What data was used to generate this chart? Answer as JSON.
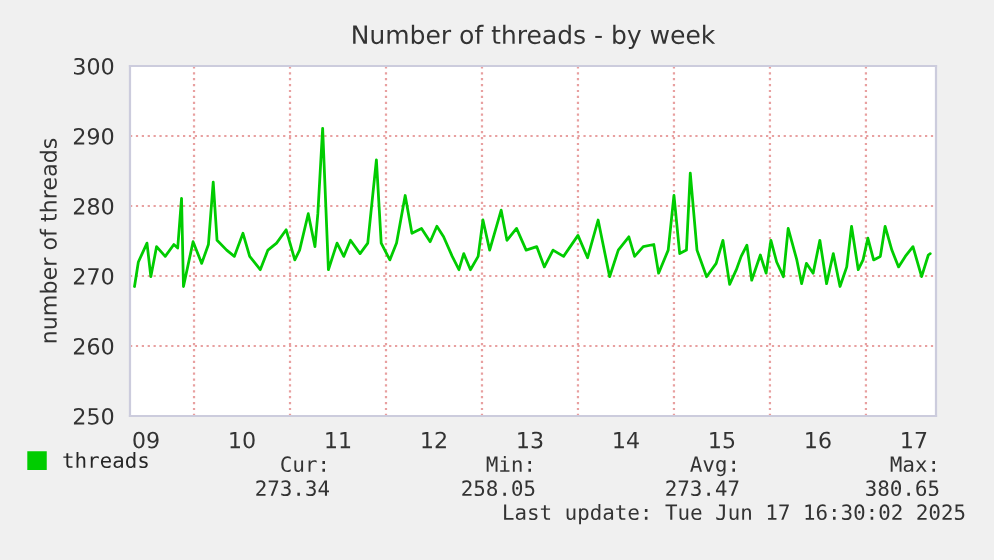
{
  "chart_data": {
    "type": "line",
    "title": "Number of threads - by week",
    "ylabel": "number of threads",
    "xlim": [
      9.333,
      17.73
    ],
    "ylim": [
      250,
      300
    ],
    "yticks": [
      250,
      260,
      270,
      280,
      290,
      300
    ],
    "xticks": [
      {
        "value": 9.5,
        "label": "09"
      },
      {
        "value": 10.5,
        "label": "10"
      },
      {
        "value": 11.5,
        "label": "11"
      },
      {
        "value": 12.5,
        "label": "12"
      },
      {
        "value": 13.5,
        "label": "13"
      },
      {
        "value": 14.5,
        "label": "14"
      },
      {
        "value": 15.5,
        "label": "15"
      },
      {
        "value": 16.5,
        "label": "16"
      },
      {
        "value": 17.5,
        "label": "17"
      }
    ],
    "grid": "y",
    "legend": "bottom",
    "ref_lines": [
      {
        "axis": "x",
        "value": 10,
        "color": "#e8a0a0",
        "line_style": "dotted"
      },
      {
        "axis": "x",
        "value": 11,
        "color": "#e8a0a0",
        "line_style": "dotted"
      },
      {
        "axis": "x",
        "value": 12,
        "color": "#e8a0a0",
        "line_style": "dotted"
      },
      {
        "axis": "x",
        "value": 13,
        "color": "#e8a0a0",
        "line_style": "dotted"
      },
      {
        "axis": "x",
        "value": 14,
        "color": "#e8a0a0",
        "line_style": "dotted"
      },
      {
        "axis": "x",
        "value": 15,
        "color": "#e8a0a0",
        "line_style": "dotted"
      },
      {
        "axis": "x",
        "value": 16,
        "color": "#e8a0a0",
        "line_style": "dotted"
      },
      {
        "axis": "x",
        "value": 17,
        "color": "#e8a0a0",
        "line_style": "dotted"
      }
    ],
    "series": [
      {
        "name": "threads",
        "color": "#00cc00",
        "x": [
          9.38,
          9.42,
          9.51,
          9.55,
          9.61,
          9.7,
          9.79,
          9.83,
          9.87,
          9.89,
          9.99,
          10.08,
          10.15,
          10.2,
          10.24,
          10.34,
          10.42,
          10.51,
          10.58,
          10.69,
          10.77,
          10.86,
          10.96,
          11.05,
          11.1,
          11.19,
          11.26,
          11.29,
          11.34,
          11.4,
          11.49,
          11.56,
          11.63,
          11.73,
          11.81,
          11.9,
          11.95,
          12.04,
          12.11,
          12.2,
          12.27,
          12.37,
          12.46,
          12.53,
          12.6,
          12.69,
          12.76,
          12.81,
          12.88,
          12.96,
          13.01,
          13.08,
          13.2,
          13.26,
          13.36,
          13.46,
          13.57,
          13.65,
          13.74,
          13.85,
          14.0,
          14.1,
          14.21,
          14.33,
          14.42,
          14.53,
          14.59,
          14.68,
          14.79,
          14.84,
          14.94,
          15.0,
          15.06,
          15.13,
          15.17,
          15.24,
          15.34,
          15.44,
          15.51,
          15.58,
          15.65,
          15.7,
          15.76,
          15.81,
          15.9,
          15.96,
          16.01,
          16.07,
          16.14,
          16.19,
          16.28,
          16.33,
          16.38,
          16.45,
          16.52,
          16.59,
          16.66,
          16.73,
          16.8,
          16.85,
          16.92,
          16.97,
          17.02,
          17.08,
          17.15,
          17.2,
          17.27,
          17.34,
          17.41,
          17.49,
          17.58,
          17.65,
          17.67
        ],
        "values": [
          268.5,
          272,
          274.7,
          269.9,
          274.2,
          272.8,
          274.5,
          274,
          281.1,
          268.5,
          274.9,
          271.8,
          274.5,
          283.4,
          275.1,
          273.7,
          272.8,
          276.1,
          272.8,
          270.9,
          273.7,
          274.7,
          276.6,
          272.3,
          273.7,
          278.9,
          274.2,
          278.9,
          291.1,
          270.9,
          274.7,
          272.8,
          275.1,
          273.2,
          274.7,
          286.6,
          274.7,
          272.3,
          274.7,
          281.5,
          276.1,
          276.8,
          274.9,
          277.1,
          275.6,
          272.8,
          270.9,
          273.2,
          270.9,
          272.8,
          278,
          273.7,
          279.4,
          275.1,
          276.8,
          273.7,
          274.2,
          271.3,
          273.7,
          272.8,
          275.8,
          272.6,
          278,
          269.9,
          273.7,
          275.6,
          272.8,
          274.2,
          274.5,
          270.4,
          273.7,
          281.5,
          273.2,
          273.7,
          284.7,
          273.7,
          269.9,
          271.8,
          275.1,
          268.8,
          270.9,
          272.8,
          274.4,
          269.4,
          273,
          270.4,
          275.1,
          272,
          269.9,
          276.8,
          272.3,
          268.9,
          271.8,
          270.4,
          275.1,
          268.9,
          273.2,
          268.5,
          271.3,
          277.1,
          270.9,
          272.3,
          275.4,
          272.3,
          272.8,
          277.1,
          273.7,
          271.3,
          272.8,
          274.2,
          269.9,
          273,
          273.2
        ]
      }
    ],
    "annotations": [
      "Cur:",
      "Min:",
      "Avg:",
      "Max:",
      "273.34",
      "258.05",
      "273.47",
      "380.65",
      "Last update: Tue Jun 17 16:30:02 2025"
    ]
  }
}
